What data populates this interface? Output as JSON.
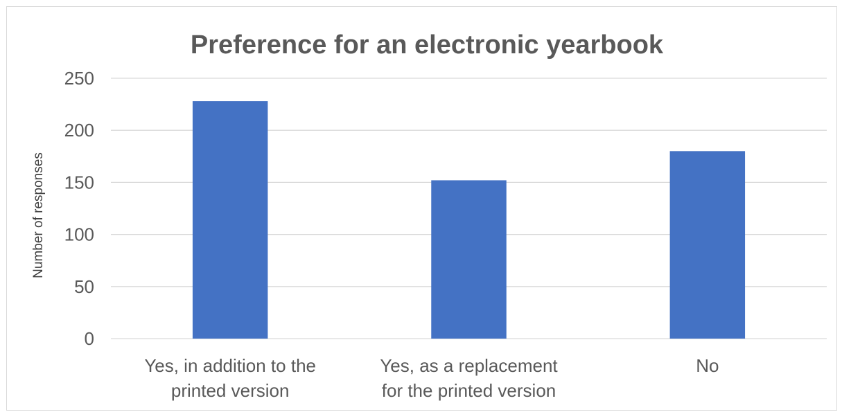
{
  "chart_data": {
    "type": "bar",
    "title": "Preference for an electronic yearbook",
    "xlabel": "",
    "ylabel": "Number of responses",
    "categories": [
      [
        "Yes, in addition to the",
        "printed version"
      ],
      [
        "Yes, as a replacement",
        "for the printed version"
      ],
      [
        "No"
      ]
    ],
    "series": [
      {
        "values": [
          228,
          152,
          180
        ],
        "color": "#4472c4"
      }
    ],
    "yticks": [
      "0",
      "50",
      "100",
      "150",
      "200",
      "250"
    ],
    "ylim": [
      0,
      250
    ],
    "grid": true,
    "legend": "none"
  }
}
